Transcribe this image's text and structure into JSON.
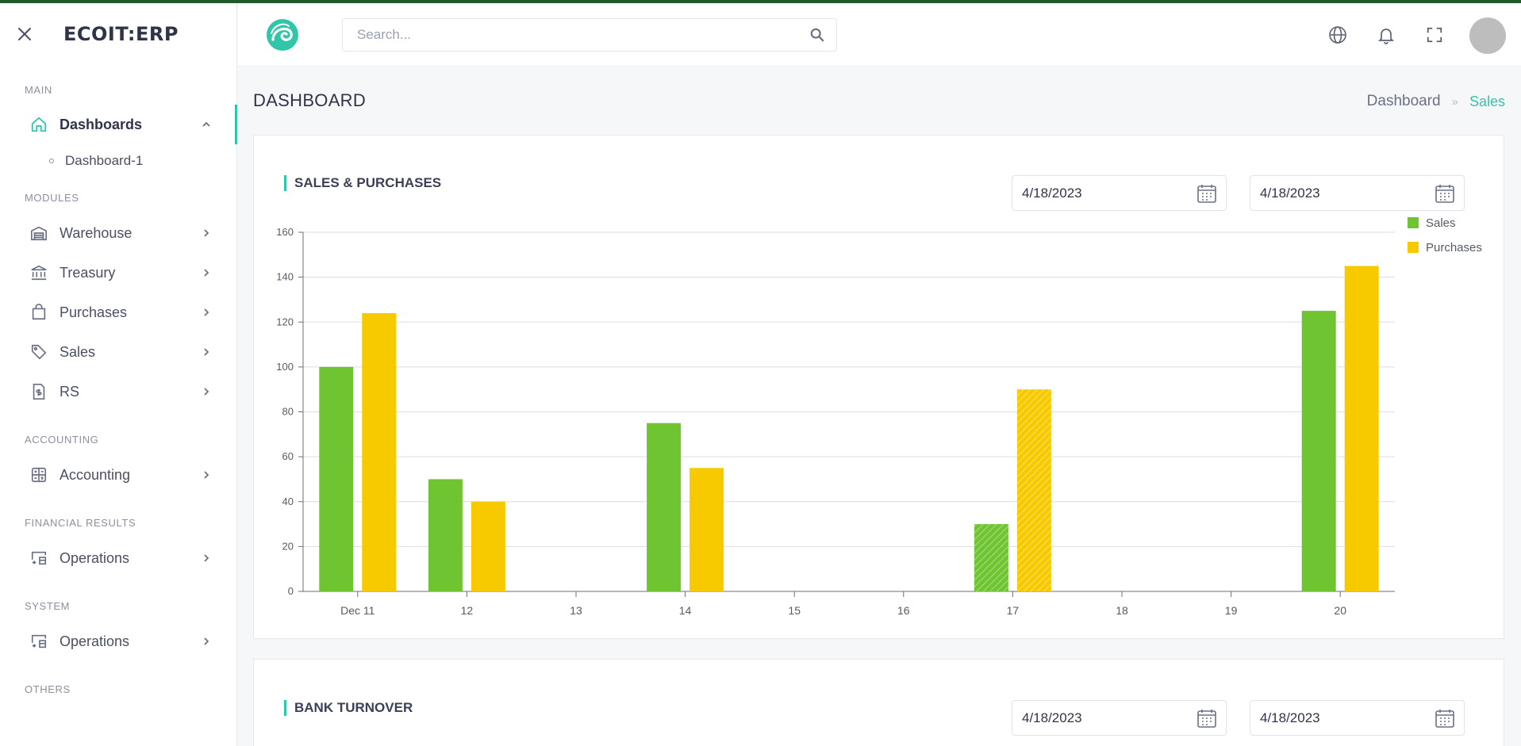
{
  "app": {
    "brand": "ECOIT:ERP"
  },
  "sidebar": {
    "sections": {
      "main": "MAIN",
      "modules": "MODULES",
      "accounting": "ACCOUNTING",
      "financial_results": "FINANCIAL RESULTS",
      "system": "SYSTEM",
      "others": "OTHERS"
    },
    "items": {
      "dashboards": "Dashboards",
      "dashboard1": "Dashboard-1",
      "warehouse": "Warehouse",
      "treasury": "Treasury",
      "purchases": "Purchases",
      "sales": "Sales",
      "rs": "RS",
      "accounting": "Accounting",
      "operations_fin": "Operations",
      "operations_sys": "Operations"
    }
  },
  "header": {
    "search_placeholder": "Search...",
    "icons": [
      "globe-icon",
      "bell-icon",
      "fullscreen-icon"
    ]
  },
  "page": {
    "title": "DASHBOARD",
    "breadcrumb": {
      "root": "Dashboard",
      "current": "Sales"
    }
  },
  "cards": {
    "sales_purchases": {
      "title": "SALES & PURCHASES",
      "date_from": "4/18/2023",
      "date_to": "4/18/2023"
    },
    "bank_turnover": {
      "title": "BANK TURNOVER",
      "date_from": "4/18/2023",
      "date_to": "4/18/2023"
    }
  },
  "colors": {
    "accent": "#31c6a7",
    "sales": "#6ec531",
    "purchases": "#f7ca00"
  },
  "chart_data": {
    "type": "bar",
    "title": "SALES & PURCHASES",
    "categories": [
      "Dec 11",
      "12",
      "13",
      "14",
      "15",
      "16",
      "17",
      "18",
      "19",
      "20"
    ],
    "series": [
      {
        "name": "Sales",
        "color": "#6ec531",
        "values": [
          100,
          50,
          0,
          75,
          0,
          0,
          30,
          0,
          0,
          125
        ]
      },
      {
        "name": "Purchases",
        "color": "#f7ca00",
        "values": [
          124,
          40,
          0,
          55,
          0,
          0,
          90,
          0,
          0,
          145
        ]
      }
    ],
    "hatched_category": "17",
    "y_ticks": [
      0,
      20,
      40,
      60,
      80,
      100,
      120,
      140,
      160
    ],
    "ylim": [
      0,
      160
    ],
    "grid": true,
    "legend": "top-right"
  }
}
